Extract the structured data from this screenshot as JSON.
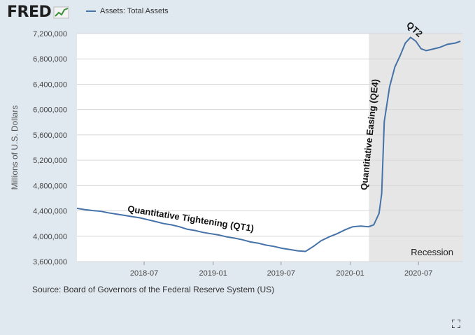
{
  "header": {
    "logo_text": "FRED",
    "logo_icon": "fred-chart-icon"
  },
  "footer": {
    "source": "Source: Board of Governors of the Federal Reserve System (US)",
    "expand_icon": "fullscreen-icon"
  },
  "colors": {
    "line": "#4572a7",
    "recession": "#e6e6e6",
    "background": "#e1e9f0",
    "plot": "#ffffff"
  },
  "chart_data": {
    "type": "line",
    "series": [
      {
        "name": "Assets: Total Assets",
        "x": [
          "2018-01-03",
          "2018-01-24",
          "2018-02-14",
          "2018-03-07",
          "2018-03-28",
          "2018-04-18",
          "2018-05-09",
          "2018-05-30",
          "2018-06-20",
          "2018-07-11",
          "2018-08-01",
          "2018-08-22",
          "2018-09-12",
          "2018-10-03",
          "2018-10-24",
          "2018-11-14",
          "2018-12-05",
          "2018-12-26",
          "2019-01-16",
          "2019-02-06",
          "2019-02-27",
          "2019-03-20",
          "2019-04-10",
          "2019-05-01",
          "2019-05-22",
          "2019-06-12",
          "2019-07-03",
          "2019-07-24",
          "2019-08-14",
          "2019-09-04",
          "2019-09-25",
          "2019-10-16",
          "2019-11-06",
          "2019-11-27",
          "2019-12-18",
          "2020-01-08",
          "2020-01-29",
          "2020-02-19",
          "2020-03-04",
          "2020-03-18",
          "2020-03-25",
          "2020-04-01",
          "2020-04-15",
          "2020-04-29",
          "2020-05-13",
          "2020-05-27",
          "2020-06-10",
          "2020-06-24",
          "2020-07-08",
          "2020-07-22",
          "2020-08-05",
          "2020-08-26",
          "2020-09-16",
          "2020-10-07",
          "2020-10-21"
        ],
        "values": [
          4440000,
          4420000,
          4405000,
          4395000,
          4370000,
          4350000,
          4330000,
          4310000,
          4290000,
          4260000,
          4230000,
          4200000,
          4180000,
          4150000,
          4110000,
          4090000,
          4060000,
          4040000,
          4020000,
          3990000,
          3970000,
          3945000,
          3910000,
          3890000,
          3860000,
          3840000,
          3810000,
          3790000,
          3770000,
          3760000,
          3840000,
          3930000,
          3990000,
          4040000,
          4100000,
          4150000,
          4160000,
          4150000,
          4180000,
          4360000,
          4670000,
          5810000,
          6360000,
          6670000,
          6850000,
          7050000,
          7140000,
          7080000,
          6960000,
          6930000,
          6950000,
          6980000,
          7030000,
          7050000,
          7080000
        ]
      }
    ],
    "ylabel": "Millions of U.S. Dollars",
    "ylim": [
      3600000,
      7200000
    ],
    "yticks": [
      3600000,
      4000000,
      4400000,
      4800000,
      5200000,
      5600000,
      6000000,
      6400000,
      6800000,
      7200000
    ],
    "ytick_labels": [
      "3,600,000",
      "4,000,000",
      "4,400,000",
      "4,800,000",
      "5,200,000",
      "5,600,000",
      "6,000,000",
      "6,400,000",
      "6,800,000",
      "7,200,000"
    ],
    "xlim": [
      "2018-01-03",
      "2020-10-28"
    ],
    "xticks": [
      "2018-07-01",
      "2019-01-01",
      "2019-07-01",
      "2020-01-01",
      "2020-07-01"
    ],
    "xtick_labels": [
      "2018-07",
      "2019-01",
      "2019-07",
      "2020-01",
      "2020-07"
    ],
    "recession": {
      "start": "2020-02-20",
      "end": "2020-10-28",
      "label": "Recession"
    },
    "annotations": [
      {
        "text": "Quantitative Tightening (QT1)",
        "x": "2018-11-01",
        "y": 4230000,
        "rotate": 9
      },
      {
        "text": "Quantitative Easing (QE4)",
        "x": "2020-03-01",
        "y": 5600000,
        "rotate": -84
      },
      {
        "text": "QT2",
        "x": "2020-06-15",
        "y": 7230000,
        "rotate": 42
      }
    ],
    "grid": "horizontal"
  }
}
